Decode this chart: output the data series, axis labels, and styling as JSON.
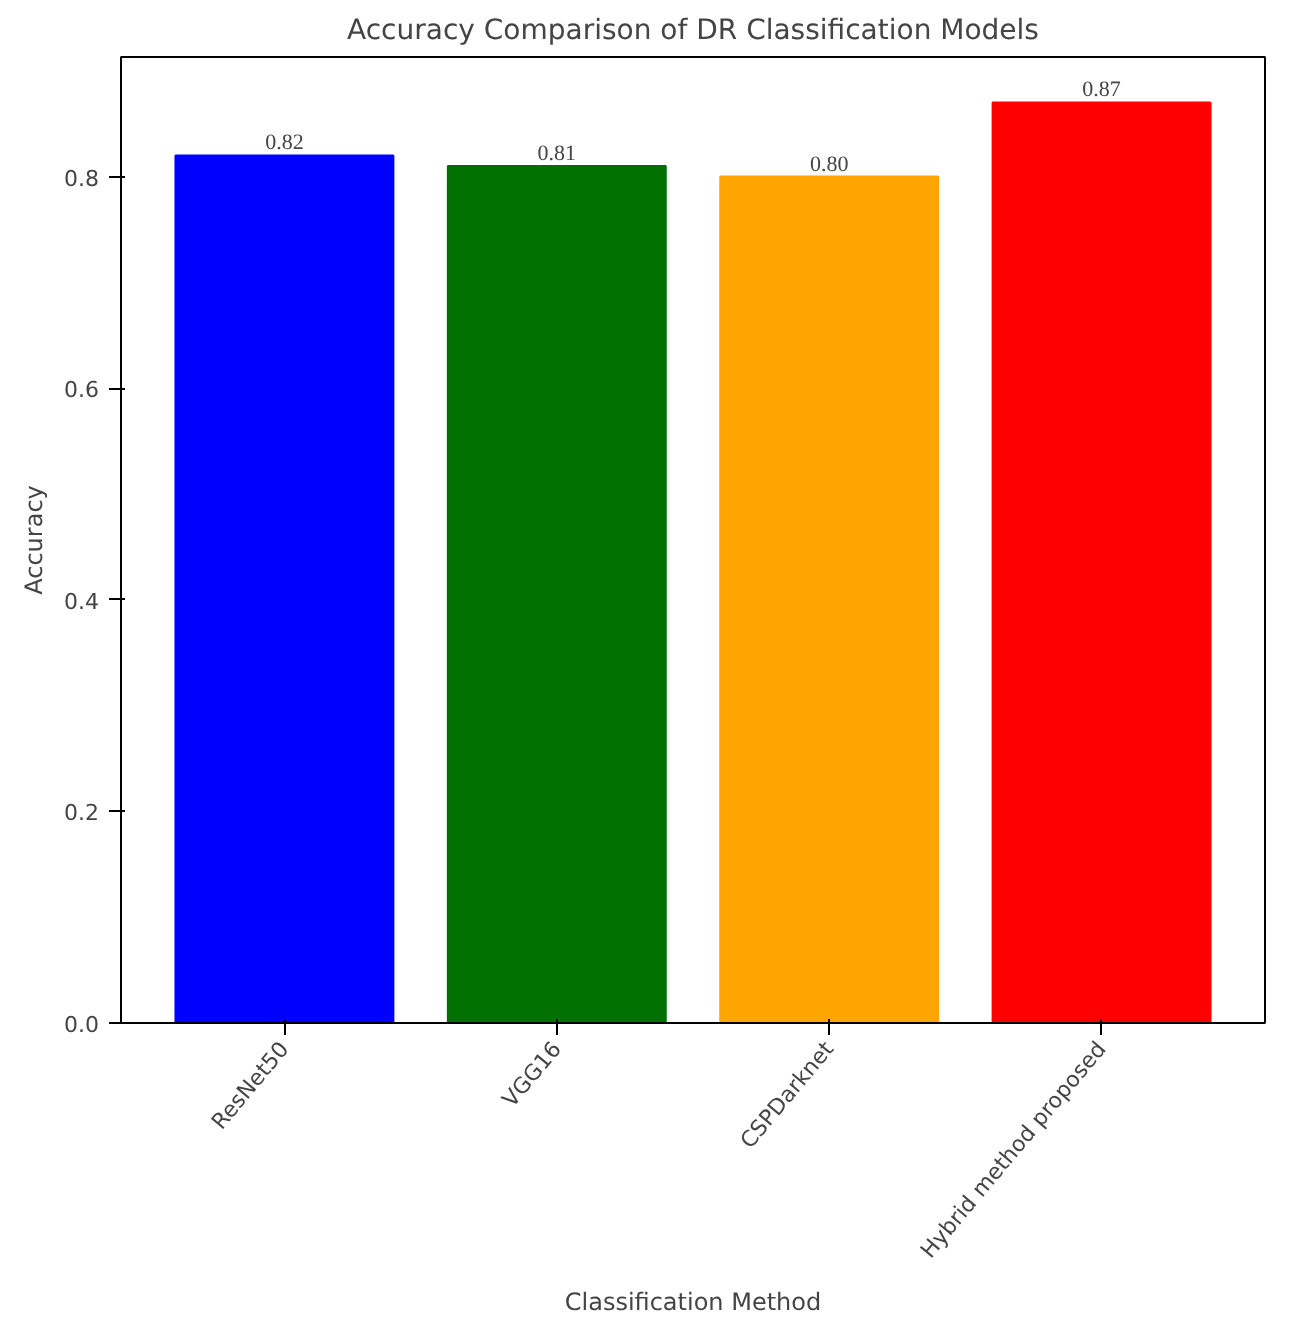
{
  "chart_data": {
    "type": "bar",
    "title": "Accuracy Comparison of DR Classification Models",
    "xlabel": "Classification Method",
    "ylabel": "Accuracy",
    "categories": [
      "ResNet50",
      "VGG16",
      "CSPDarknet",
      "Hybrid method proposed"
    ],
    "values": [
      0.82,
      0.81,
      0.8,
      0.87
    ],
    "colors": [
      "#0000ff",
      "#007000",
      "#ffa500",
      "#ff0000"
    ],
    "value_labels": [
      "0.82",
      "0.81",
      "0.80",
      "0.87"
    ],
    "ylim": [
      0,
      0.913
    ],
    "yticks": [
      {
        "value": 0,
        "label": "0.0"
      },
      {
        "value": 0.2,
        "label": "0.2"
      },
      {
        "value": 0.4,
        "label": "0.4"
      },
      {
        "value": 0.6,
        "label": "0.6"
      },
      {
        "value": 0.8,
        "label": "0.8"
      }
    ],
    "grid": false
  }
}
